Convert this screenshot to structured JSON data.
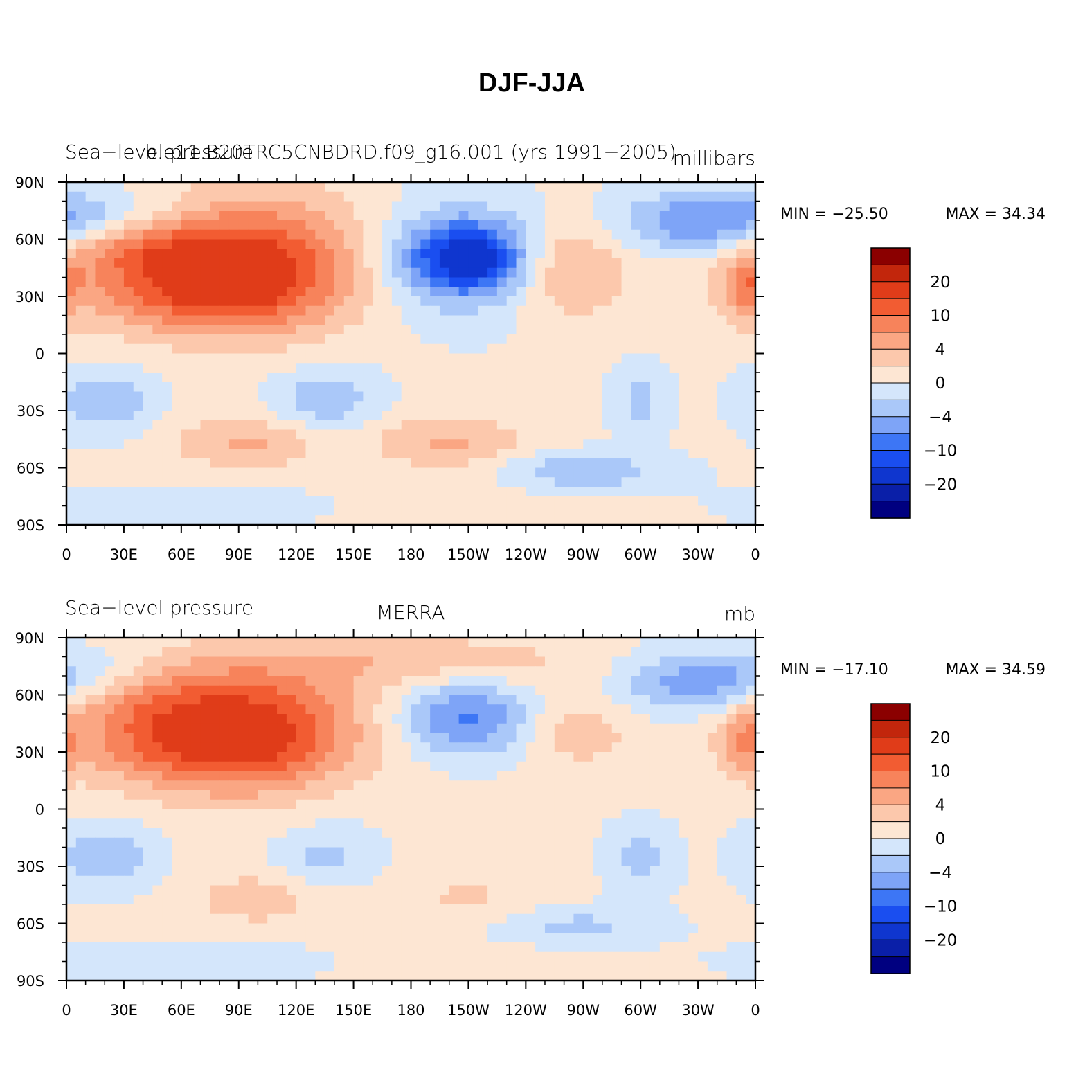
{
  "chart_data": {
    "type": "heatmap",
    "title": "DJF-JJA",
    "x_ticks": [
      "0",
      "30E",
      "60E",
      "90E",
      "120E",
      "150E",
      "180",
      "150W",
      "120W",
      "90W",
      "60W",
      "30W",
      "0"
    ],
    "y_ticks": [
      "90N",
      "60N",
      "30N",
      "0",
      "30S",
      "60S",
      "90S"
    ],
    "colorbar": {
      "levels": [
        -25,
        -20,
        -15,
        -10,
        -8,
        -6,
        -4,
        -2,
        0,
        2,
        4,
        6,
        8,
        10,
        15,
        20,
        25
      ],
      "labels": [
        "20",
        "10",
        "4",
        "0",
        "−4",
        "−10",
        "−20"
      ],
      "colors": [
        "#000080",
        "#0a1fa8",
        "#0f36cf",
        "#1a4ef0",
        "#3d76f5",
        "#7ea4f7",
        "#aac8f9",
        "#d4e6fb",
        "#fde6d3",
        "#fcc8ac",
        "#faa683",
        "#f7835b",
        "#f25c32",
        "#e03c19",
        "#c2260c",
        "#8b0000"
      ]
    },
    "panels": [
      {
        "left": "Sea−level pressure",
        "center": "b.e11.B20TRC5CNBDRD.f09_g16.001 (yrs 1991−2005)",
        "right": "millibars",
        "min_label": "MIN = −25.50",
        "max_label": "MAX =   34.34",
        "min": -25.5,
        "max": 34.34
      },
      {
        "left": "Sea−level pressure",
        "center": "MERRA",
        "right": "mb",
        "min_label": "MIN = −17.10",
        "max_label": "MAX =   34.59",
        "min": -17.1,
        "max": 34.59
      }
    ]
  }
}
